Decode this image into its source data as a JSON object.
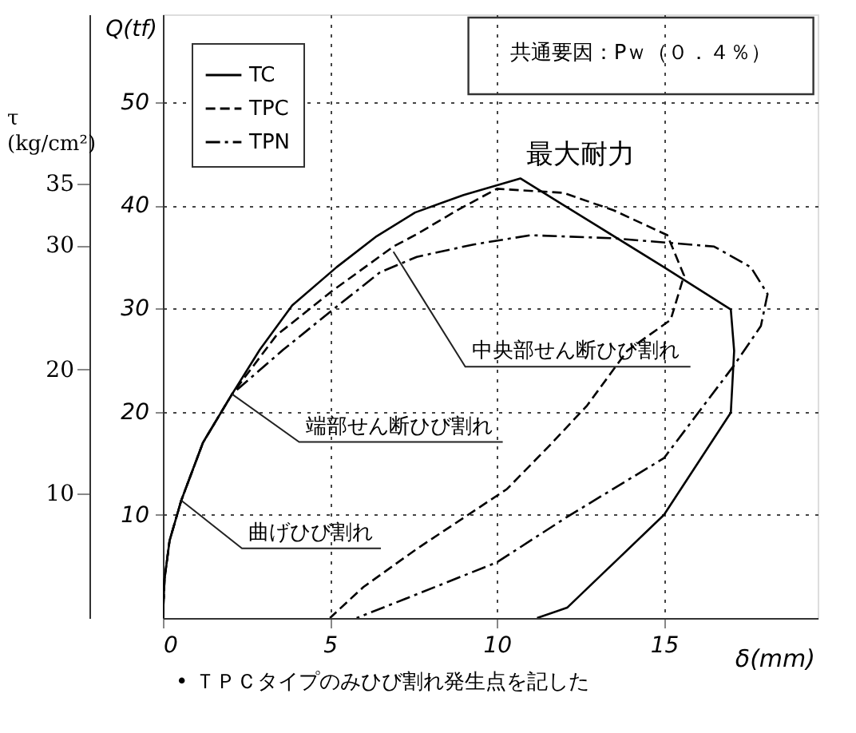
{
  "chart_data": {
    "type": "line",
    "xlabel": "δ(mm)",
    "ylabel": "Q(tf)",
    "y2label": "τ (kg/cm²)",
    "xlim": [
      0,
      19.6
    ],
    "xticks": [
      0,
      5,
      10,
      15
    ],
    "ylim": [
      0,
      58.5
    ],
    "yticks": [
      10,
      20,
      30,
      40,
      50
    ],
    "y2lim": [
      0,
      48.6
    ],
    "y2ticks": [
      10,
      20,
      30,
      35
    ],
    "grid": true,
    "legend": "top left",
    "series": [
      {
        "name": "TC",
        "color": "#000000",
        "line_style": "solid",
        "x": [
          0,
          0.05,
          0.2,
          0.55,
          1.2,
          2.07,
          2.9,
          3.87,
          5.2,
          6.4,
          7.55,
          9.0,
          10.7,
          13.0,
          15.0,
          17.0,
          17.1,
          17.0,
          15.0,
          12.1,
          11.2
        ],
        "values": [
          0,
          3.8,
          7.5,
          11.4,
          17.0,
          21.7,
          26.0,
          30.3,
          34.0,
          37.0,
          39.3,
          41.0,
          42.6,
          38.0,
          34.0,
          29.9,
          25.9,
          19.9,
          10.0,
          1.0,
          0
        ]
      },
      {
        "name": "TPC",
        "color": "#000000",
        "line_style": "dashed",
        "x": [
          0,
          0.05,
          0.2,
          0.55,
          1.2,
          2.07,
          3.4,
          5.07,
          6.9,
          7.6,
          8.8,
          10.0,
          12.0,
          13.5,
          15.1,
          15.6,
          15.2,
          13.9,
          12.7,
          11.6,
          10.3,
          7.6,
          6.0,
          5.0
        ],
        "values": [
          0,
          3.8,
          7.5,
          11.4,
          17.0,
          21.7,
          27.4,
          31.7,
          36.0,
          37.2,
          39.5,
          41.6,
          41.2,
          39.5,
          37.1,
          33.2,
          28.9,
          25.9,
          20.6,
          16.8,
          12.5,
          6.7,
          3.0,
          0
        ]
      },
      {
        "name": "TPN",
        "color": "#000000",
        "line_style": "dashdot",
        "x": [
          0,
          0.05,
          0.2,
          0.55,
          1.2,
          2.07,
          3.6,
          5.25,
          6.5,
          7.6,
          9.3,
          11.0,
          13.5,
          16.5,
          17.6,
          18.1,
          17.9,
          17.1,
          15.0,
          12.1,
          10.0,
          7.6,
          5.8
        ],
        "values": [
          0,
          3.8,
          7.5,
          11.4,
          17.0,
          21.7,
          26.0,
          30.3,
          33.5,
          35.0,
          36.2,
          37.1,
          36.8,
          36.0,
          34.0,
          31.4,
          28.3,
          24.5,
          15.5,
          9.8,
          5.4,
          2.3,
          0
        ]
      }
    ],
    "annotations": [
      {
        "text": "曲げひび割れ",
        "x": 0.55,
        "y": 11.4
      },
      {
        "text": "端部せん断ひび割れ",
        "x": 2.07,
        "y": 21.7
      },
      {
        "text": "中央部せん断ひび割れ",
        "x": 6.9,
        "y": 35.5
      },
      "最大耐力",
      "共通要因：Pｗ（０．４％）",
      "• ＴＰＣタイプのみひび割れ発生点を記した"
    ]
  }
}
